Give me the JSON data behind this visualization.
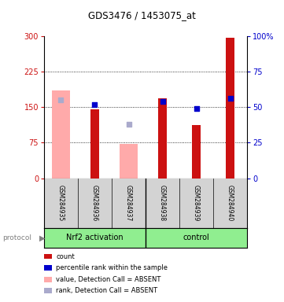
{
  "title": "GDS3476 / 1453075_at",
  "samples": [
    "GSM284935",
    "GSM284936",
    "GSM284937",
    "GSM284938",
    "GSM284939",
    "GSM284940"
  ],
  "red_bars": [
    null,
    145,
    null,
    168,
    113,
    297
  ],
  "pink_bars": [
    185,
    null,
    73,
    null,
    null,
    null
  ],
  "blue_squares_pct": [
    null,
    52,
    null,
    54,
    49,
    56
  ],
  "lightblue_squares_pct": [
    55,
    null,
    38,
    null,
    null,
    null
  ],
  "left_ylim": [
    0,
    300
  ],
  "left_yticks": [
    0,
    75,
    150,
    225,
    300
  ],
  "right_ylim": [
    0,
    100
  ],
  "right_yticks": [
    0,
    25,
    50,
    75,
    100
  ],
  "right_yticklabels": [
    "0",
    "25",
    "50",
    "75",
    "100%"
  ],
  "hlines": [
    75,
    150,
    225
  ],
  "bar_width": 0.55,
  "red_color": "#cc1111",
  "pink_color": "#ffaaaa",
  "blue_color": "#0000cc",
  "lightblue_color": "#aaaacc",
  "plot_bg": "#ffffff",
  "tick_gray_bg": "#d3d3d3",
  "group_bg": "#90ee90",
  "legend_items": [
    {
      "color": "#cc1111",
      "label": "count"
    },
    {
      "color": "#0000cc",
      "label": "percentile rank within the sample"
    },
    {
      "color": "#ffaaaa",
      "label": "value, Detection Call = ABSENT"
    },
    {
      "color": "#aaaacc",
      "label": "rank, Detection Call = ABSENT"
    }
  ]
}
